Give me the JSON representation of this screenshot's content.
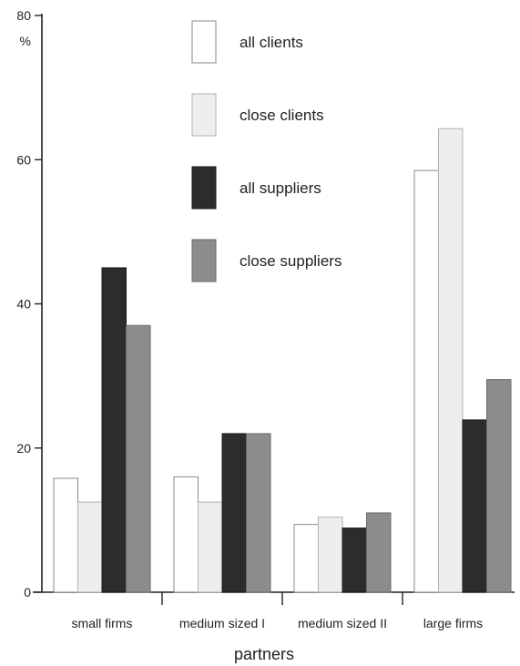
{
  "chart_data": {
    "type": "bar",
    "categories": [
      "small firms",
      "medium sized I",
      "medium sized II",
      "large firms"
    ],
    "series": [
      {
        "name": "all clients",
        "values": [
          15.8,
          16.0,
          9.4,
          58.5
        ],
        "fill": "#ffffff",
        "stroke": "#8a8a8a"
      },
      {
        "name": "close clients",
        "values": [
          12.5,
          12.5,
          10.4,
          64.3
        ],
        "fill": "#eeeeee",
        "stroke": "#b0b0b0"
      },
      {
        "name": "all suppliers",
        "values": [
          45.0,
          22.0,
          8.9,
          23.9
        ],
        "fill": "#2c2c2c",
        "stroke": "#1a1a1a"
      },
      {
        "name": "close suppliers",
        "values": [
          37.0,
          22.0,
          11.0,
          29.5
        ],
        "fill": "#8c8c8c",
        "stroke": "#6a6a6a"
      }
    ],
    "ylim": [
      0,
      80
    ],
    "yticks": [
      0,
      20,
      40,
      60,
      80
    ],
    "ytick_labels": [
      "0",
      "20",
      "40",
      "60",
      "80"
    ],
    "y_unit": "%",
    "xlabel": "partners",
    "ylabel": "",
    "title": "",
    "legend_position": "top-center",
    "grid": false
  }
}
